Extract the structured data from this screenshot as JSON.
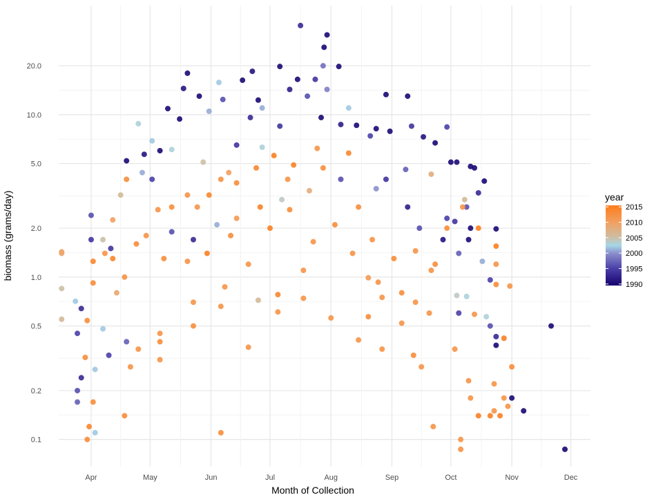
{
  "chart_data": {
    "type": "scatter",
    "title": "",
    "xlabel": "Month of Collection",
    "ylabel": "biomass (grams/day)",
    "y_scale": "log10",
    "ylim": [
      0.068,
      47
    ],
    "xlim_day_of_year": [
      74.5,
      345
    ],
    "grid": true,
    "x_ticks": [
      {
        "label": "Apr",
        "doy": 91
      },
      {
        "label": "May",
        "doy": 121
      },
      {
        "label": "Jun",
        "doy": 152
      },
      {
        "label": "Jul",
        "doy": 182
      },
      {
        "label": "Aug",
        "doy": 213
      },
      {
        "label": "Sep",
        "doy": 244
      },
      {
        "label": "Oct",
        "doy": 274
      },
      {
        "label": "Nov",
        "doy": 305
      },
      {
        "label": "Dec",
        "doy": 335
      }
    ],
    "y_ticks": [
      {
        "label": "0.1",
        "value": 0.1
      },
      {
        "label": "0.2",
        "value": 0.2
      },
      {
        "label": "0.5",
        "value": 0.5
      },
      {
        "label": "1.0",
        "value": 1
      },
      {
        "label": "2.0",
        "value": 2
      },
      {
        "label": "5.0",
        "value": 5
      },
      {
        "label": "10.0",
        "value": 10
      },
      {
        "label": "20.0",
        "value": 20
      }
    ],
    "legend": {
      "title": "year",
      "placement": "right",
      "ticks": [
        {
          "label": "2015",
          "value": 2015
        },
        {
          "label": "2010",
          "value": 2010
        },
        {
          "label": "2005",
          "value": 2005
        },
        {
          "label": "2000",
          "value": 2000
        },
        {
          "label": "1995",
          "value": 1995
        },
        {
          "label": "1990",
          "value": 1990
        }
      ],
      "range": [
        1989.5,
        2015.5
      ],
      "color_stops": [
        {
          "year": 1990,
          "color": "#1a0873"
        },
        {
          "year": 1995,
          "color": "#4a3fa8"
        },
        {
          "year": 2000,
          "color": "#8b8fcc"
        },
        {
          "year": 2002.5,
          "color": "#a6d7e6"
        },
        {
          "year": 2005,
          "color": "#cbbfa6"
        },
        {
          "year": 2010,
          "color": "#f2a060"
        },
        {
          "year": 2015,
          "color": "#fb8022"
        }
      ]
    },
    "point_fields": [
      "day_of_year",
      "biomass",
      "year"
    ],
    "points": [
      [
        197.5,
        35.4,
        1993
      ],
      [
        211,
        31,
        1990
      ],
      [
        209.5,
        26,
        1990
      ],
      [
        140,
        18,
        1990
      ],
      [
        173,
        18.5,
        1991
      ],
      [
        187,
        19.8,
        1990
      ],
      [
        217,
        19.8,
        1990
      ],
      [
        209,
        20,
        1998
      ],
      [
        156,
        15.8,
        2002
      ],
      [
        168,
        16.3,
        1990
      ],
      [
        130,
        10.9,
        1990
      ],
      [
        115,
        8.8,
        2003
      ],
      [
        241,
        13.3,
        1990
      ],
      [
        252,
        13,
        1990
      ],
      [
        243,
        7.9,
        1990
      ],
      [
        254,
        8.5,
        1994
      ],
      [
        272,
        8.4,
        1995
      ],
      [
        260,
        7.3,
        1991
      ],
      [
        266,
        6.7,
        1990
      ],
      [
        274,
        5.1,
        1990
      ],
      [
        284,
        4.8,
        1990
      ],
      [
        277,
        5.1,
        1990
      ],
      [
        291,
        3.9,
        1990
      ],
      [
        264,
        4.3,
        2008
      ],
      [
        281,
        3.0,
        2006
      ],
      [
        282,
        2.7,
        1996
      ],
      [
        276,
        2.2,
        1994
      ],
      [
        278,
        1.4,
        1997
      ],
      [
        284,
        2.0,
        1990
      ],
      [
        283,
        1.7,
        1990
      ],
      [
        297,
        1.98,
        1990
      ],
      [
        297,
        1.55,
        2015
      ],
      [
        297,
        1.2,
        2012
      ],
      [
        297,
        0.9,
        2013
      ],
      [
        304,
        0.88,
        2012
      ],
      [
        294,
        0.96,
        1995
      ],
      [
        290,
        1.25,
        2001
      ],
      [
        277,
        0.77,
        2004
      ],
      [
        282,
        0.76,
        2003
      ],
      [
        286,
        0.59,
        2012
      ],
      [
        278,
        0.6,
        1995
      ],
      [
        292,
        0.57,
        2003
      ],
      [
        294,
        0.5,
        1996
      ],
      [
        297,
        0.43,
        1993
      ],
      [
        297,
        0.38,
        1990
      ],
      [
        301,
        0.42,
        2015
      ],
      [
        305,
        0.18,
        1990
      ],
      [
        311,
        0.15,
        1990
      ],
      [
        325,
        0.5,
        1990
      ],
      [
        332,
        0.087,
        1990
      ],
      [
        279,
        0.1,
        2012
      ],
      [
        279,
        0.087,
        2012
      ],
      [
        265,
        0.12,
        2012
      ],
      [
        288,
        0.14,
        2015
      ],
      [
        294,
        0.14,
        2015
      ],
      [
        299,
        0.14,
        2015
      ],
      [
        296,
        0.15,
        2012
      ],
      [
        303,
        0.16,
        2012
      ],
      [
        296,
        0.22,
        2012
      ],
      [
        301,
        0.18,
        2012
      ],
      [
        284,
        0.18,
        2012
      ],
      [
        283,
        0.23,
        2012
      ],
      [
        305,
        0.28,
        2013
      ],
      [
        301,
        0.42,
        2013
      ],
      [
        276,
        0.36,
        2012
      ],
      [
        255,
        0.33,
        2013
      ],
      [
        259,
        0.28,
        2012
      ],
      [
        239,
        0.36,
        2012
      ],
      [
        227,
        0.41,
        2012
      ],
      [
        213,
        0.56,
        2012
      ],
      [
        232,
        0.57,
        2013
      ],
      [
        249,
        0.52,
        2012
      ],
      [
        232,
        0.99,
        2011
      ],
      [
        237,
        0.93,
        2012
      ],
      [
        239,
        0.75,
        2012
      ],
      [
        199,
        0.74,
        2012
      ],
      [
        199,
        1.1,
        2012
      ],
      [
        186,
        0.78,
        2014
      ],
      [
        186,
        0.61,
        2012
      ],
      [
        176,
        0.72,
        2006
      ],
      [
        171,
        0.37,
        2012
      ],
      [
        157,
        0.11,
        2013
      ],
      [
        157,
        0.66,
        2012
      ],
      [
        159,
        0.87,
        2012
      ],
      [
        143,
        0.5,
        2013
      ],
      [
        143,
        0.7,
        2012
      ],
      [
        126,
        0.4,
        2013
      ],
      [
        126,
        0.31,
        2012
      ],
      [
        126,
        0.45,
        2012
      ],
      [
        115,
        0.36,
        2012
      ],
      [
        111,
        0.28,
        2012
      ],
      [
        108,
        0.14,
        2013
      ],
      [
        109,
        0.4,
        1997
      ],
      [
        100,
        0.33,
        1995
      ],
      [
        92,
        0.17,
        2013
      ],
      [
        89,
        0.1,
        2013
      ],
      [
        90,
        0.12,
        2014
      ],
      [
        93,
        0.11,
        2002
      ],
      [
        84,
        0.2,
        1996
      ],
      [
        84,
        0.17,
        1997
      ],
      [
        86,
        0.24,
        1993
      ],
      [
        84,
        0.45,
        1995
      ],
      [
        88,
        0.32,
        2013
      ],
      [
        89,
        0.54,
        2013
      ],
      [
        93,
        0.27,
        2002
      ],
      [
        97,
        0.48,
        2002
      ],
      [
        76,
        0.55,
        2006
      ],
      [
        76,
        0.85,
        2005
      ],
      [
        76,
        1.43,
        2010
      ],
      [
        76,
        1.4,
        2009
      ],
      [
        83,
        0.71,
        2002
      ],
      [
        86,
        0.64,
        1993
      ],
      [
        91,
        2.4,
        1996
      ],
      [
        91,
        1.7,
        1994
      ],
      [
        92,
        1.25,
        2014
      ],
      [
        92,
        0.92,
        2013
      ],
      [
        98,
        1.4,
        2012
      ],
      [
        101,
        1.5,
        1994
      ],
      [
        102,
        1.3,
        2014
      ],
      [
        108,
        1.0,
        2012
      ],
      [
        109,
        5.2,
        1990
      ],
      [
        109,
        4.0,
        2013
      ],
      [
        118,
        5.7,
        1991
      ],
      [
        122,
        6.9,
        2002
      ],
      [
        126,
        6.0,
        1990
      ],
      [
        132,
        6.1,
        2003
      ],
      [
        136,
        9.4,
        1990
      ],
      [
        138,
        14.5,
        1991
      ],
      [
        146,
        13,
        1990
      ],
      [
        151,
        10.5,
        2001
      ],
      [
        158,
        12.4,
        1996
      ],
      [
        165,
        6.5,
        1994
      ],
      [
        172,
        9.6,
        1993
      ],
      [
        176,
        12.3,
        1990
      ],
      [
        178,
        6.3,
        2003
      ],
      [
        187,
        8.5,
        1994
      ],
      [
        192,
        14.3,
        1992
      ],
      [
        196,
        16.5,
        1990
      ],
      [
        201,
        13,
        1996
      ],
      [
        205,
        16.5,
        1994
      ],
      [
        208,
        9.6,
        1990
      ],
      [
        218,
        8.7,
        1992
      ],
      [
        222,
        11,
        2002
      ],
      [
        226,
        8.6,
        1990
      ],
      [
        233,
        7.4,
        1995
      ],
      [
        236,
        8.2,
        1990
      ],
      [
        222,
        5.8,
        2014
      ],
      [
        209,
        4.7,
        2013
      ],
      [
        206,
        6.2,
        2012
      ],
      [
        194,
        4.9,
        2015
      ],
      [
        191,
        4.0,
        2012
      ],
      [
        184,
        5.6,
        2015
      ],
      [
        175,
        4.7,
        2014
      ],
      [
        165,
        3.8,
        2013
      ],
      [
        157,
        4.0,
        2012
      ],
      [
        151,
        3.2,
        2014
      ],
      [
        145,
        2.7,
        2012
      ],
      [
        140,
        3.2,
        2012
      ],
      [
        132,
        2.7,
        2013
      ],
      [
        125,
        2.6,
        2012
      ],
      [
        119,
        1.8,
        2012
      ],
      [
        114,
        1.6,
        2013
      ],
      [
        128,
        1.3,
        2013
      ],
      [
        140,
        1.25,
        2012
      ],
      [
        150,
        1.4,
        2015
      ],
      [
        162,
        1.8,
        2013
      ],
      [
        171,
        1.2,
        2012
      ],
      [
        182,
        2.0,
        2015
      ],
      [
        192,
        2.6,
        2013
      ],
      [
        204,
        1.65,
        2012
      ],
      [
        215,
        2.1,
        2013
      ],
      [
        224,
        1.4,
        2012
      ],
      [
        234,
        1.7,
        2012
      ],
      [
        245,
        1.3,
        2013
      ],
      [
        256,
        1.45,
        2012
      ],
      [
        264,
        1.1,
        2012
      ],
      [
        270,
        1.7,
        1991
      ],
      [
        272,
        2.3,
        1995
      ],
      [
        258,
        2.0,
        1996
      ],
      [
        252,
        2.7,
        1992
      ],
      [
        241,
        4.0,
        1994
      ],
      [
        236,
        3.5,
        2000
      ],
      [
        227,
        2.7,
        2013
      ],
      [
        218,
        4.0,
        1996
      ],
      [
        202,
        3.4,
        2008
      ],
      [
        188,
        3.0,
        2004
      ],
      [
        177,
        2.7,
        2015
      ],
      [
        165,
        2.3,
        2011
      ],
      [
        155,
        2.1,
        2001
      ],
      [
        143,
        1.7,
        1993
      ],
      [
        132,
        1.9,
        1996
      ],
      [
        122,
        4.0,
        1995
      ],
      [
        117,
        4.4,
        2001
      ],
      [
        106,
        3.2,
        2006
      ],
      [
        102,
        2.25,
        2010
      ],
      [
        97,
        1.7,
        2005
      ],
      [
        104,
        0.8,
        2009
      ],
      [
        256,
        0.7,
        2012
      ],
      [
        263,
        0.6,
        2012
      ],
      [
        249,
        0.8,
        2013
      ],
      [
        288,
        2.0,
        2015
      ],
      [
        280,
        2.7,
        2012
      ],
      [
        272,
        2.0,
        2013
      ],
      [
        266,
        1.2,
        2013
      ],
      [
        288,
        3.3,
        1993
      ],
      [
        286,
        4.7,
        1990
      ],
      [
        251,
        4.6,
        1997
      ],
      [
        211,
        14.3,
        1999
      ],
      [
        178,
        11,
        2001
      ],
      [
        148,
        5.1,
        2005
      ],
      [
        161,
        4.4,
        2010
      ]
    ]
  }
}
